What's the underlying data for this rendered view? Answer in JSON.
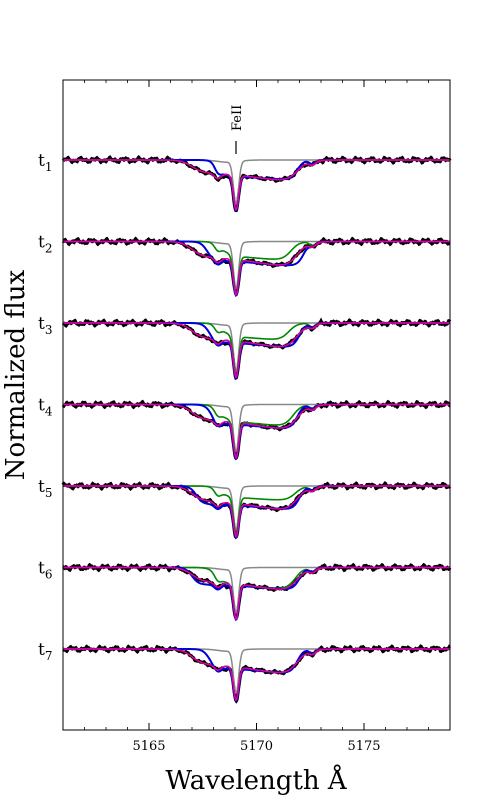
{
  "chart_data": {
    "type": "line",
    "title": "",
    "xlabel": "Wavelength Å",
    "ylabel": "Normalized flux",
    "xlim": [
      5161.0,
      5179.0
    ],
    "xticks": [
      5165,
      5170,
      5175
    ],
    "xtick_labels": [
      "5165",
      "5170",
      "5175"
    ],
    "grid": false,
    "legend": "none",
    "annotation": {
      "text": "FeII",
      "x": 5169.0
    },
    "rows": [
      {
        "label": "t",
        "sub": "1",
        "fe_depth": 0.58,
        "blue_x": [
          5168.2,
          5171.9
        ],
        "blue_depth": 0.27,
        "green_x": null,
        "green_depth": null
      },
      {
        "label": "t",
        "sub": "2",
        "fe_depth": 0.62,
        "blue_x": [
          5167.7,
          5172.2
        ],
        "blue_depth": 0.33,
        "green_x": [
          5168.4,
          5171.6
        ],
        "green_depth": 0.26
      },
      {
        "label": "t",
        "sub": "3",
        "fe_depth": 0.64,
        "blue_x": [
          5167.8,
          5172.0
        ],
        "blue_depth": 0.33,
        "green_x": [
          5168.4,
          5171.5
        ],
        "green_depth": 0.24
      },
      {
        "label": "t",
        "sub": "4",
        "fe_depth": 0.62,
        "blue_x": [
          5167.9,
          5171.9
        ],
        "blue_depth": 0.33,
        "green_x": [
          5168.3,
          5171.7
        ],
        "green_depth": 0.3
      },
      {
        "label": "t",
        "sub": "5",
        "fe_depth": 0.58,
        "blue_x": [
          5167.2,
          5172.0
        ],
        "blue_depth": 0.32,
        "green_x": [
          5168.3,
          5171.8
        ],
        "green_depth": 0.2
      },
      {
        "label": "t",
        "sub": "6",
        "fe_depth": 0.6,
        "blue_x": [
          5167.0,
          5172.0
        ],
        "blue_depth": 0.3,
        "green_x": [
          5168.2,
          5171.8
        ],
        "green_depth": 0.3
      },
      {
        "label": "t",
        "sub": "7",
        "fe_depth": 0.58,
        "blue_x": [
          5167.8,
          5171.9
        ],
        "blue_depth": 0.33,
        "green_x": null,
        "green_depth": null
      }
    ],
    "series_colors": {
      "observed": "#000000",
      "photosphere": "#888888",
      "model_a": "#0000dd",
      "model_b": "#008800",
      "model_c": "#dd0000",
      "model_d": "#dd00aa"
    }
  }
}
